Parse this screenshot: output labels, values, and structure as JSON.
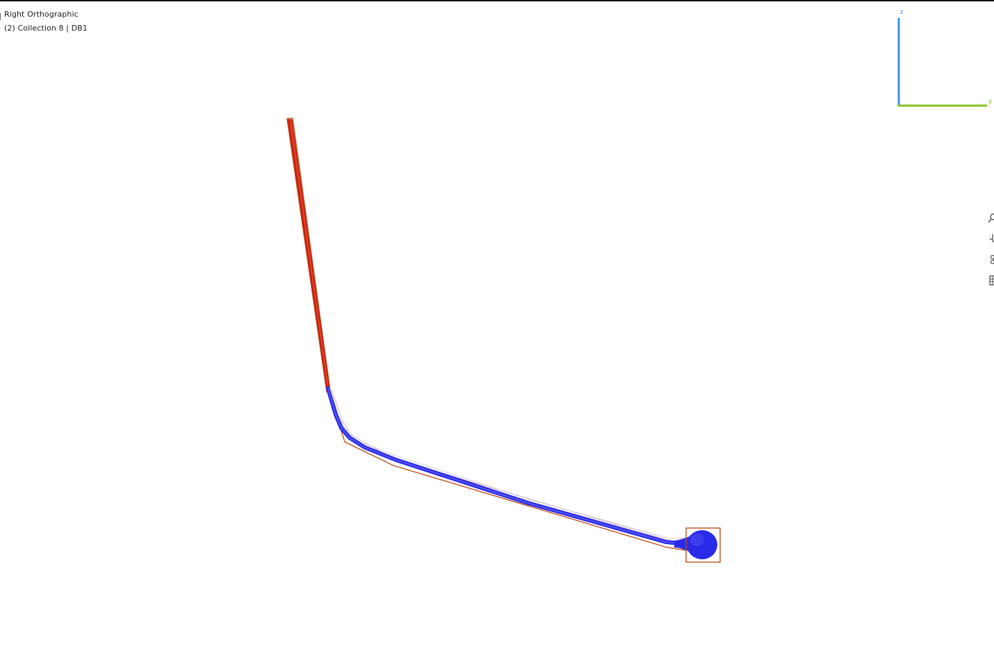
{
  "viewport": {
    "view_name": "Right Orthographic",
    "collection_info": "(2) Collection 8 | DB1"
  },
  "gizmo": {
    "axis_z_label": "z",
    "axis_y_label": "y",
    "axis_z_color": "#3b8fe0",
    "axis_y_color": "#82c21e"
  },
  "nav_tools": [
    {
      "name": "zoom",
      "icon": "magnifier-icon"
    },
    {
      "name": "pan",
      "icon": "hand-icon"
    },
    {
      "name": "camera",
      "icon": "camera-icon"
    },
    {
      "name": "grid",
      "icon": "grid-icon"
    }
  ],
  "colors": {
    "selected_outline": "#c0501a",
    "red_object": "#d4261a",
    "blue_object": "#2a2ae8",
    "background": "#ffffff"
  }
}
